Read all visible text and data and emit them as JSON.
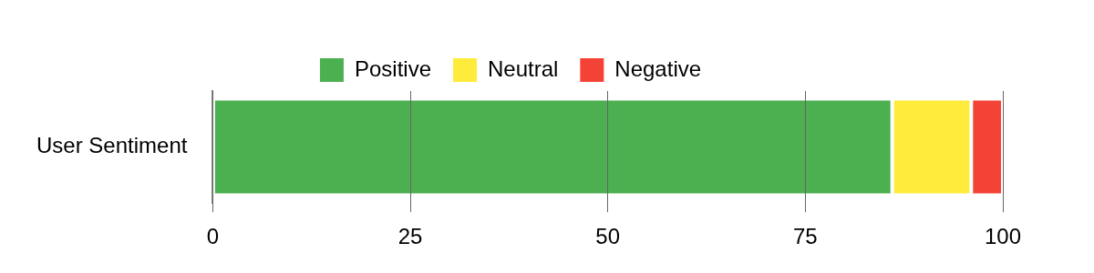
{
  "chart_data": {
    "type": "bar",
    "orientation": "horizontal",
    "stacked": true,
    "categories": [
      "User Sentiment"
    ],
    "series": [
      {
        "name": "Positive",
        "color": "#4caf50",
        "values": [
          86
        ]
      },
      {
        "name": "Neutral",
        "color": "#ffeb3b",
        "values": [
          10
        ]
      },
      {
        "name": "Negative",
        "color": "#f44336",
        "values": [
          4
        ]
      }
    ],
    "xlim": [
      0,
      100
    ],
    "xticks": [
      0,
      25,
      50,
      75,
      100
    ],
    "grid": "x",
    "legend": "top"
  }
}
